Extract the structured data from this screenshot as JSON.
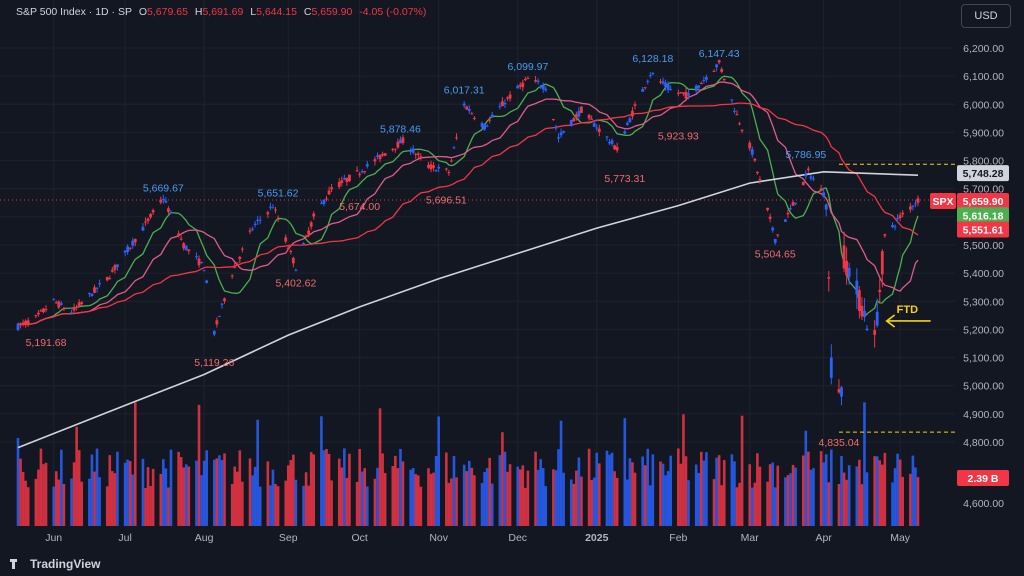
{
  "header": {
    "symbol": "S&P 500 Index · 1D · SP",
    "o_label": "O",
    "o_value": "5,679.65",
    "h_label": "H",
    "h_value": "5,691.69",
    "l_label": "L",
    "l_value": "5,644.15",
    "c_label": "C",
    "c_value": "5,659.90",
    "change": "-4.05 (-0.07%)"
  },
  "currency_button": "USD",
  "brand": "TradingView",
  "colors": {
    "background": "#131722",
    "up_candle": "#2962ff",
    "down_candle": "#f23645",
    "sma_fast": "#4caf50",
    "sma_mid": "#e05c8a",
    "sma_slow": "#f23645",
    "sma_200": "#d1d4dc",
    "annotation_price": "#4a9cf0",
    "annotation_low": "#f26b6b",
    "ftd": "#f5d311"
  },
  "chart_data": {
    "type": "candlestick",
    "y_axis": {
      "ticks": [
        "6,200.00",
        "6,100.00",
        "6,000.00",
        "5,900.00",
        "5,800.00",
        "5,700.00",
        "5,600.00",
        "5,500.00",
        "5,400.00",
        "5,300.00",
        "5,200.00",
        "5,100.00",
        "5,000.00",
        "4,900.00",
        "4,800.00",
        "4,600.00"
      ],
      "tick_values": [
        6200,
        6100,
        6000,
        5900,
        5800,
        5700,
        5600,
        5500,
        5400,
        5300,
        5200,
        5100,
        5000,
        4900,
        4800,
        4600
      ]
    },
    "x_axis": {
      "labels": [
        "Jun",
        "Jul",
        "Aug",
        "Sep",
        "Oct",
        "Nov",
        "Dec",
        "2025",
        "Feb",
        "Mar",
        "Apr",
        "May"
      ],
      "label_dates": [
        "2024-06-03",
        "2024-07-01",
        "2024-08-01",
        "2024-09-03",
        "2024-10-01",
        "2024-11-01",
        "2024-12-02",
        "2025-01-02",
        "2025-02-03",
        "2025-03-03",
        "2025-04-01",
        "2025-05-01"
      ]
    },
    "date_range": [
      "2024-05-20",
      "2025-05-08"
    ],
    "price_series": [
      {
        "date": "2024-05-20",
        "close": 5210
      },
      {
        "date": "2024-05-27",
        "close": 5240
      },
      {
        "date": "2024-06-03",
        "close": 5300
      },
      {
        "date": "2024-06-10",
        "close": 5260
      },
      {
        "date": "2024-06-17",
        "close": 5320
      },
      {
        "date": "2024-06-24",
        "close": 5380
      },
      {
        "date": "2024-07-01",
        "close": 5470
      },
      {
        "date": "2024-07-08",
        "close": 5560
      },
      {
        "date": "2024-07-16",
        "close": 5669
      },
      {
        "date": "2024-07-24",
        "close": 5500
      },
      {
        "date": "2024-08-01",
        "close": 5420
      },
      {
        "date": "2024-08-05",
        "close": 5190
      },
      {
        "date": "2024-08-12",
        "close": 5400
      },
      {
        "date": "2024-08-20",
        "close": 5560
      },
      {
        "date": "2024-08-28",
        "close": 5640
      },
      {
        "date": "2024-09-06",
        "close": 5420
      },
      {
        "date": "2024-09-13",
        "close": 5600
      },
      {
        "date": "2024-09-20",
        "close": 5700
      },
      {
        "date": "2024-10-01",
        "close": 5760
      },
      {
        "date": "2024-10-10",
        "close": 5820
      },
      {
        "date": "2024-10-18",
        "close": 5870
      },
      {
        "date": "2024-10-28",
        "close": 5780
      },
      {
        "date": "2024-11-05",
        "close": 5760
      },
      {
        "date": "2024-11-11",
        "close": 6000
      },
      {
        "date": "2024-11-19",
        "close": 5920
      },
      {
        "date": "2024-11-27",
        "close": 6010
      },
      {
        "date": "2024-12-06",
        "close": 6090
      },
      {
        "date": "2024-12-13",
        "close": 6060
      },
      {
        "date": "2024-12-18",
        "close": 5880
      },
      {
        "date": "2024-12-27",
        "close": 5980
      },
      {
        "date": "2025-01-10",
        "close": 5840
      },
      {
        "date": "2025-01-17",
        "close": 5990
      },
      {
        "date": "2025-01-23",
        "close": 6110
      },
      {
        "date": "2025-01-31",
        "close": 6050
      },
      {
        "date": "2025-02-07",
        "close": 6030
      },
      {
        "date": "2025-02-19",
        "close": 6147
      },
      {
        "date": "2025-02-26",
        "close": 5960
      },
      {
        "date": "2025-03-04",
        "close": 5830
      },
      {
        "date": "2025-03-13",
        "close": 5520
      },
      {
        "date": "2025-03-21",
        "close": 5660
      },
      {
        "date": "2025-03-26",
        "close": 5760
      },
      {
        "date": "2025-04-02",
        "close": 5670
      },
      {
        "date": "2025-04-04",
        "close": 5070
      },
      {
        "date": "2025-04-08",
        "close": 4980
      },
      {
        "date": "2025-04-09",
        "close": 5460
      },
      {
        "date": "2025-04-16",
        "close": 5280
      },
      {
        "date": "2025-04-21",
        "close": 5160
      },
      {
        "date": "2025-04-25",
        "close": 5530
      },
      {
        "date": "2025-05-01",
        "close": 5600
      },
      {
        "date": "2025-05-08",
        "close": 5660
      }
    ],
    "moving_averages": [
      {
        "name": "",
        "color": "#4caf50",
        "period": 10
      },
      {
        "name": "",
        "color": "#e05c8a",
        "period": 21
      },
      {
        "name": "",
        "color": "#f23645",
        "period": 50
      },
      {
        "name": "",
        "color": "#d1d4dc",
        "period": 200
      }
    ],
    "sma200_points": [
      {
        "date": "2024-05-20",
        "value": 4780
      },
      {
        "date": "2024-07-01",
        "value": 4930
      },
      {
        "date": "2024-08-01",
        "value": 5040
      },
      {
        "date": "2024-09-03",
        "value": 5180
      },
      {
        "date": "2024-10-01",
        "value": 5280
      },
      {
        "date": "2024-11-01",
        "value": 5380
      },
      {
        "date": "2024-12-02",
        "value": 5470
      },
      {
        "date": "2025-01-02",
        "value": 5560
      },
      {
        "date": "2025-02-03",
        "value": 5640
      },
      {
        "date": "2025-03-03",
        "value": 5720
      },
      {
        "date": "2025-04-01",
        "value": 5760
      },
      {
        "date": "2025-05-08",
        "value": 5748
      }
    ],
    "annotations": [
      {
        "text": "5,191.68",
        "date": "2024-05-31",
        "price": 5191.68,
        "kind": "low"
      },
      {
        "text": "5,669.67",
        "date": "2024-07-16",
        "price": 5669.67,
        "kind": "high"
      },
      {
        "text": "5,119.26",
        "date": "2024-08-05",
        "price": 5119.26,
        "kind": "low"
      },
      {
        "text": "5,651.62",
        "date": "2024-08-30",
        "price": 5651.62,
        "kind": "high"
      },
      {
        "text": "5,402.62",
        "date": "2024-09-06",
        "price": 5402.62,
        "kind": "low"
      },
      {
        "text": "5,674.00",
        "date": "2024-10-01",
        "price": 5674.0,
        "kind": "low"
      },
      {
        "text": "5,878.46",
        "date": "2024-10-17",
        "price": 5878.46,
        "kind": "high"
      },
      {
        "text": "5,696.51",
        "date": "2024-11-04",
        "price": 5696.51,
        "kind": "low"
      },
      {
        "text": "6,017.31",
        "date": "2024-11-11",
        "price": 6017.31,
        "kind": "high"
      },
      {
        "text": "6,099.97",
        "date": "2024-12-06",
        "price": 6099.97,
        "kind": "high"
      },
      {
        "text": "5,773.31",
        "date": "2025-01-13",
        "price": 5773.31,
        "kind": "low"
      },
      {
        "text": "6,128.18",
        "date": "2025-01-24",
        "price": 6128.18,
        "kind": "high"
      },
      {
        "text": "5,923.93",
        "date": "2025-02-03",
        "price": 5923.93,
        "kind": "low"
      },
      {
        "text": "6,147.43",
        "date": "2025-02-19",
        "price": 6147.43,
        "kind": "high"
      },
      {
        "text": "5,504.65",
        "date": "2025-03-13",
        "price": 5504.65,
        "kind": "low"
      },
      {
        "text": "5,786.95",
        "date": "2025-03-25",
        "price": 5786.95,
        "kind": "high"
      },
      {
        "text": "4,835.04",
        "date": "2025-04-07",
        "price": 4835.04,
        "kind": "low"
      }
    ],
    "ftd_label": "FTD",
    "ftd_price": 5230,
    "reference_lines": [
      {
        "price": 5786.95,
        "color": "#f5d311",
        "style": "dashed"
      },
      {
        "price": 4835.04,
        "color": "#f5d311",
        "style": "dashed"
      }
    ],
    "price_tags": [
      {
        "text": "5,748.28",
        "price": 5748.28,
        "bg": "#d1d4dc",
        "fg": "#131722"
      },
      {
        "text": "SPX",
        "price": 5659.9,
        "bg": "#f23645",
        "fg": "#ffffff"
      },
      {
        "text": "5,659.90",
        "price": 5659.9,
        "bg": "#f23645",
        "fg": "#ffffff"
      },
      {
        "text": "5,616.18",
        "price": 5616.18,
        "bg": "#4caf50",
        "fg": "#ffffff"
      },
      {
        "text": "5,551.61",
        "price": 5551.61,
        "bg": "#f23645",
        "fg": "#ffffff"
      }
    ],
    "volume_label": "2.39 B",
    "last_price": 5659.9
  }
}
